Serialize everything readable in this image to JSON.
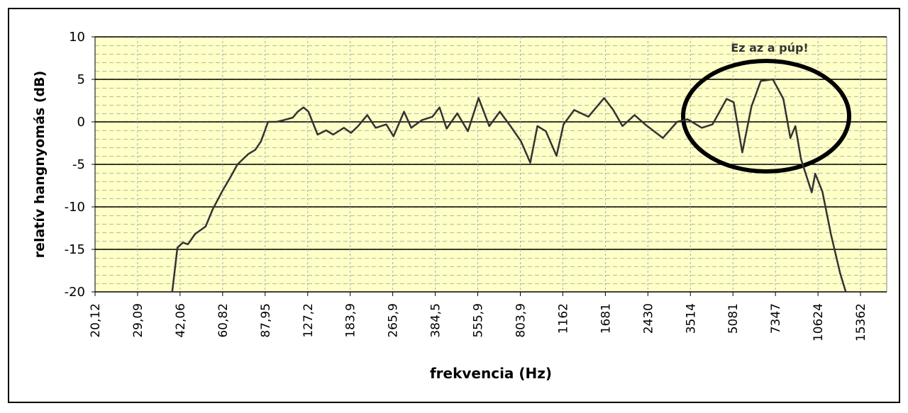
{
  "chart_data": {
    "type": "line",
    "xlabel": "frekvencia (Hz)",
    "ylabel": "relatív hangnyomás (dB)",
    "annotation": "Ez az a púp!",
    "xscale": "log",
    "grid": true,
    "xlim": [
      20.12,
      19280
    ],
    "ylim": [
      -20,
      10
    ],
    "xticks": [
      {
        "value": 20.12,
        "label": "20,12"
      },
      {
        "value": 29.09,
        "label": "29,09"
      },
      {
        "value": 42.06,
        "label": "42,06"
      },
      {
        "value": 60.82,
        "label": "60,82"
      },
      {
        "value": 87.95,
        "label": "87,95"
      },
      {
        "value": 127.2,
        "label": "127,2"
      },
      {
        "value": 183.9,
        "label": "183,9"
      },
      {
        "value": 265.9,
        "label": "265,9"
      },
      {
        "value": 384.5,
        "label": "384,5"
      },
      {
        "value": 555.9,
        "label": "555,9"
      },
      {
        "value": 803.9,
        "label": "803,9"
      },
      1162,
      1681,
      2430,
      3514,
      5081,
      7347,
      10624,
      15362
    ],
    "yticks": [
      -20,
      -15,
      -10,
      -5,
      0,
      5,
      10
    ],
    "series": [
      {
        "color": "#333333",
        "x": [
          39.3,
          41.1,
          43.1,
          45.0,
          47.9,
          52.5,
          55.8,
          60.5,
          65.1,
          69.2,
          75.9,
          80.7,
          84.8,
          90.2,
          97.1,
          103.2,
          111.8,
          116.7,
          122.6,
          128.0,
          138.6,
          149.3,
          158.7,
          174.1,
          185.1,
          196.9,
          213.1,
          229.4,
          251.5,
          267.6,
          293.4,
          312.2,
          342.3,
          375.2,
          399.0,
          424.3,
          465.3,
          510.2,
          559.8,
          613.9,
          673.1,
          738.0,
          808.9,
          876.3,
          932.6,
          1003,
          1100,
          1169,
          1282,
          1450,
          1662,
          1800,
          1949,
          2164,
          2372,
          2767,
          3130,
          3431,
          3879,
          4255,
          4811,
          5116,
          5509,
          5967,
          6465,
          7177,
          7869,
          8364,
          8732,
          9171,
          10064,
          10372,
          11034,
          11881,
          12871,
          13521
        ],
        "values": [
          -20,
          -14.8,
          -14.2,
          -14.4,
          -13.2,
          -12.3,
          -10.3,
          -8.2,
          -6.5,
          -5,
          -3.8,
          -3.3,
          -2.3,
          0,
          0,
          0.2,
          0.5,
          1.2,
          1.7,
          1.2,
          -1.5,
          -1,
          -1.5,
          -0.7,
          -1.3,
          -0.5,
          0.8,
          -0.7,
          -0.3,
          -1.7,
          1.2,
          -0.7,
          0.2,
          0.6,
          1.7,
          -0.8,
          1,
          -1.1,
          2.8,
          -0.5,
          1.2,
          -0.5,
          -2.3,
          -4.8,
          -0.5,
          -1.1,
          -4,
          -0.3,
          1.4,
          0.6,
          2.8,
          1.4,
          -0.5,
          0.8,
          -0.3,
          -1.9,
          0,
          0.3,
          -0.7,
          -0.3,
          2.7,
          2.3,
          -3.6,
          1.8,
          4.8,
          5,
          2.7,
          -1.9,
          -0.5,
          -4.4,
          -8.3,
          -6.1,
          -8.2,
          -13.2,
          -17.8,
          -20
        ]
      }
    ]
  }
}
